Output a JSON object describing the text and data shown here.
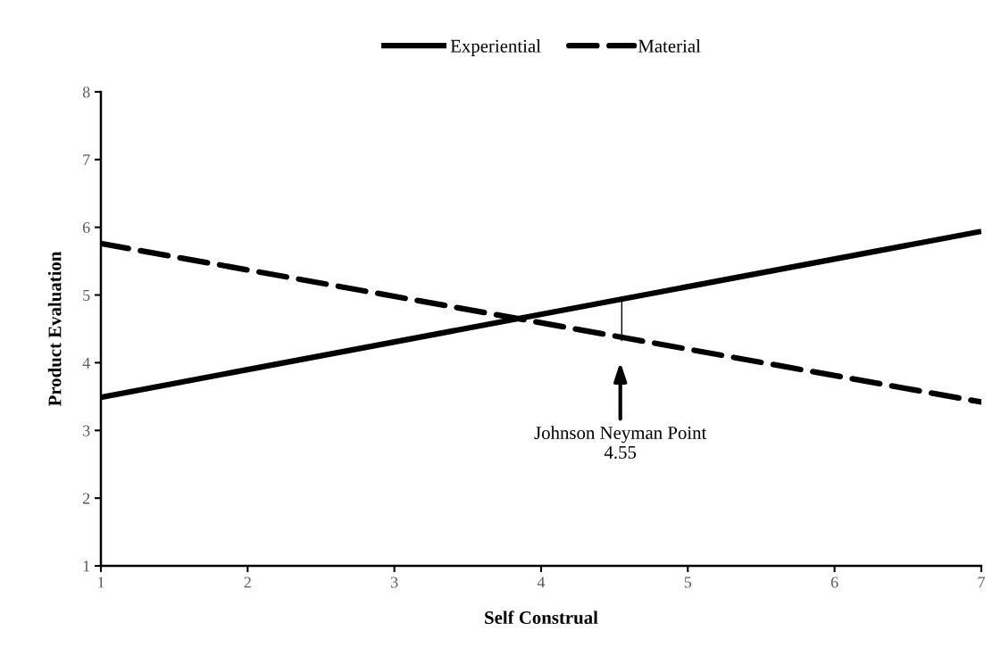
{
  "chart_data": {
    "type": "line",
    "xlabel": "Self Construal",
    "ylabel": "Product Evaluation",
    "x": [
      1,
      7
    ],
    "series": [
      {
        "name": "Experiential",
        "color": "#000000",
        "values": [
          3.49,
          5.94
        ],
        "line_style": "solid"
      },
      {
        "name": "Material",
        "color": "#000000",
        "values": [
          5.76,
          3.42
        ],
        "line_style": "dashed"
      },
      {
        "color": "#000000",
        "x": [
          4.55,
          4.55
        ],
        "values": [
          4.32,
          4.98
        ],
        "line_style": "solid"
      }
    ],
    "annotations": [
      "Johnson Neyman Point\n4.55"
    ],
    "xlim": [
      1,
      7
    ],
    "xticks": [
      1,
      2,
      3,
      4,
      5,
      6,
      7
    ],
    "ylim": [
      1,
      8
    ],
    "yticks": [
      1,
      2,
      3,
      4,
      5,
      6,
      7,
      8
    ],
    "grid": false,
    "legend": "top",
    "marker": "none"
  }
}
